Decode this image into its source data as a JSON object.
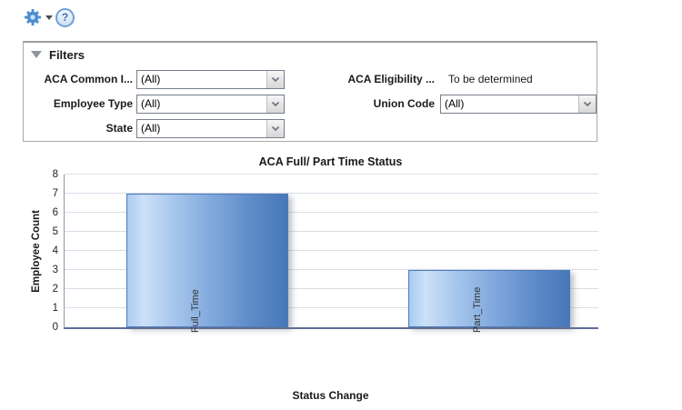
{
  "toolbar": {
    "help_glyph": "?"
  },
  "filters": {
    "title": "Filters",
    "aca_common": {
      "label": "ACA Common I...",
      "value": "(All)"
    },
    "employee_type": {
      "label": "Employee Type",
      "value": "(All)"
    },
    "state": {
      "label": "State",
      "value": "(All)"
    },
    "aca_eligibility": {
      "label": "ACA Eligibility ...",
      "value": "To be determined"
    },
    "union_code": {
      "label": "Union Code",
      "value": "(All)"
    }
  },
  "chart_data": {
    "type": "bar",
    "title": "ACA Full/ Part Time Status",
    "categories": [
      "Full_Time",
      "Part_Time"
    ],
    "values": [
      7,
      3
    ],
    "xlabel": "Status Change",
    "ylabel": "Employee Count",
    "ylim": [
      0,
      8
    ],
    "ytick_step": 1,
    "yticks": [
      0,
      1,
      2,
      3,
      4,
      5,
      6,
      7,
      8
    ],
    "grid": true,
    "legend": "none",
    "bar_border_color": "#4b7bbd",
    "bar_gradient": [
      "#a9cbf0",
      "#cde0f8",
      "#a5c5ec",
      "#7da6db",
      "#5b89c6",
      "#4877b9"
    ],
    "axis_color": "#5f6d96",
    "gridline_color": "#dadde7"
  }
}
